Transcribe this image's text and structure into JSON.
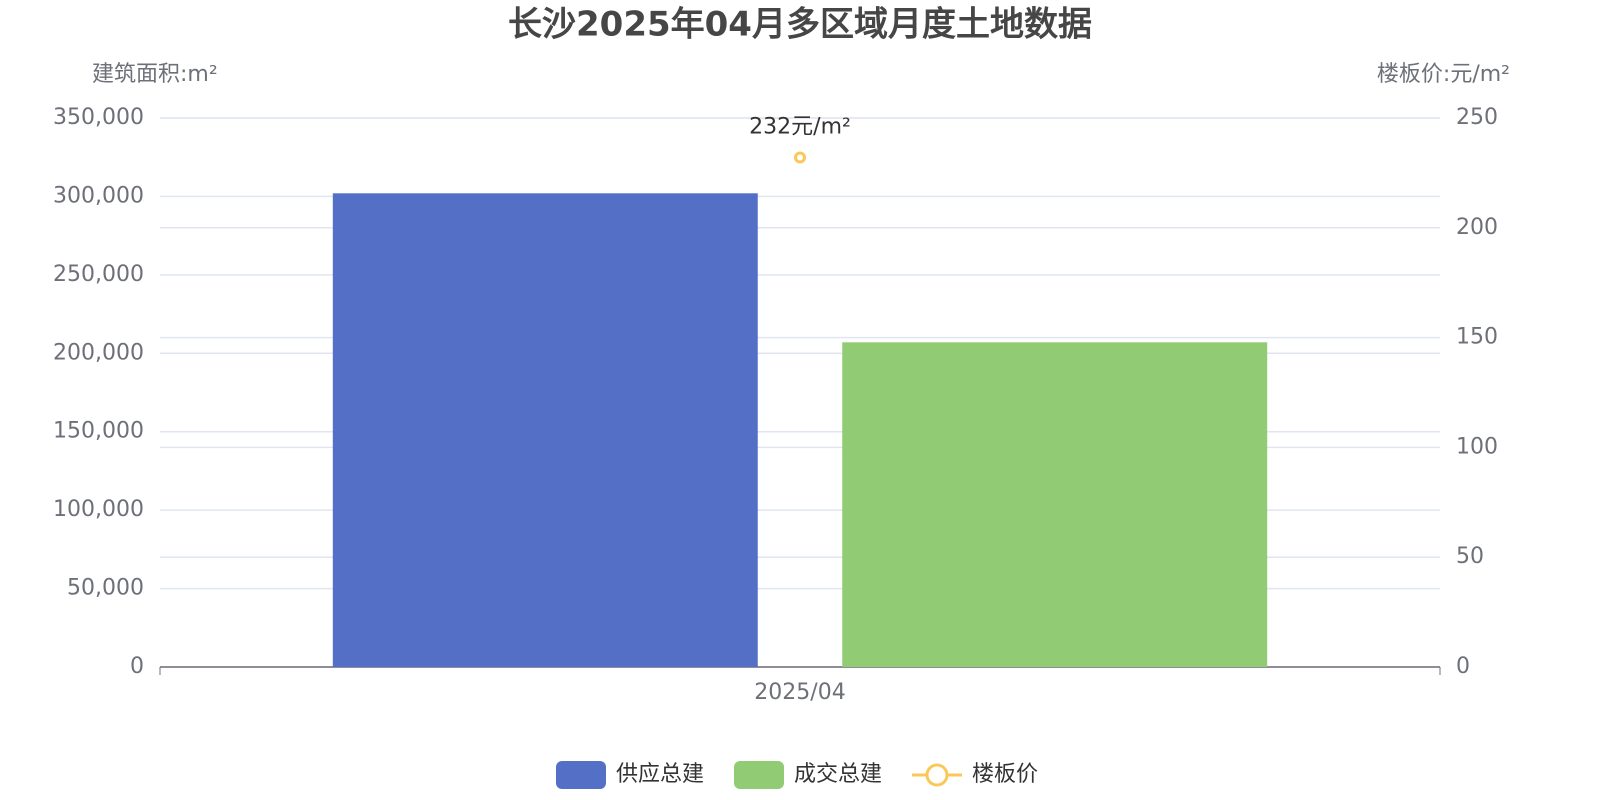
{
  "chart_data": {
    "type": "bar",
    "title": "长沙2025年04月多区域月度土地数据",
    "categories": [
      "2025/04"
    ],
    "series": [
      {
        "name": "供应总建",
        "type": "bar",
        "color": "#5470c6",
        "values": [
          302000
        ]
      },
      {
        "name": "成交总建",
        "type": "bar",
        "color": "#91cc75",
        "values": [
          207000
        ]
      },
      {
        "name": "楼板价",
        "type": "line",
        "axis": "y2",
        "color": "#fac858",
        "values": [
          232
        ],
        "value_labels": [
          "232元/m²"
        ]
      }
    ],
    "y_label": "建筑面积:m²",
    "y2_label": "楼板价:元/m²",
    "ylim": [
      0,
      350000
    ],
    "yticks": [
      0,
      {
        "value": 50000,
        "label": "50,000"
      },
      {
        "value": 100000,
        "label": "100,000"
      },
      {
        "value": 150000,
        "label": "150,000"
      },
      {
        "value": 200000,
        "label": "200,000"
      },
      {
        "value": 250000,
        "label": "250,000"
      },
      {
        "value": 300000,
        "label": "300,000"
      },
      {
        "value": 350000,
        "label": "350,000"
      }
    ],
    "y2lim": [
      0,
      250
    ],
    "y2ticks": [
      0,
      50,
      100,
      150,
      200,
      250
    ],
    "grid": true,
    "legend": "bottom"
  }
}
